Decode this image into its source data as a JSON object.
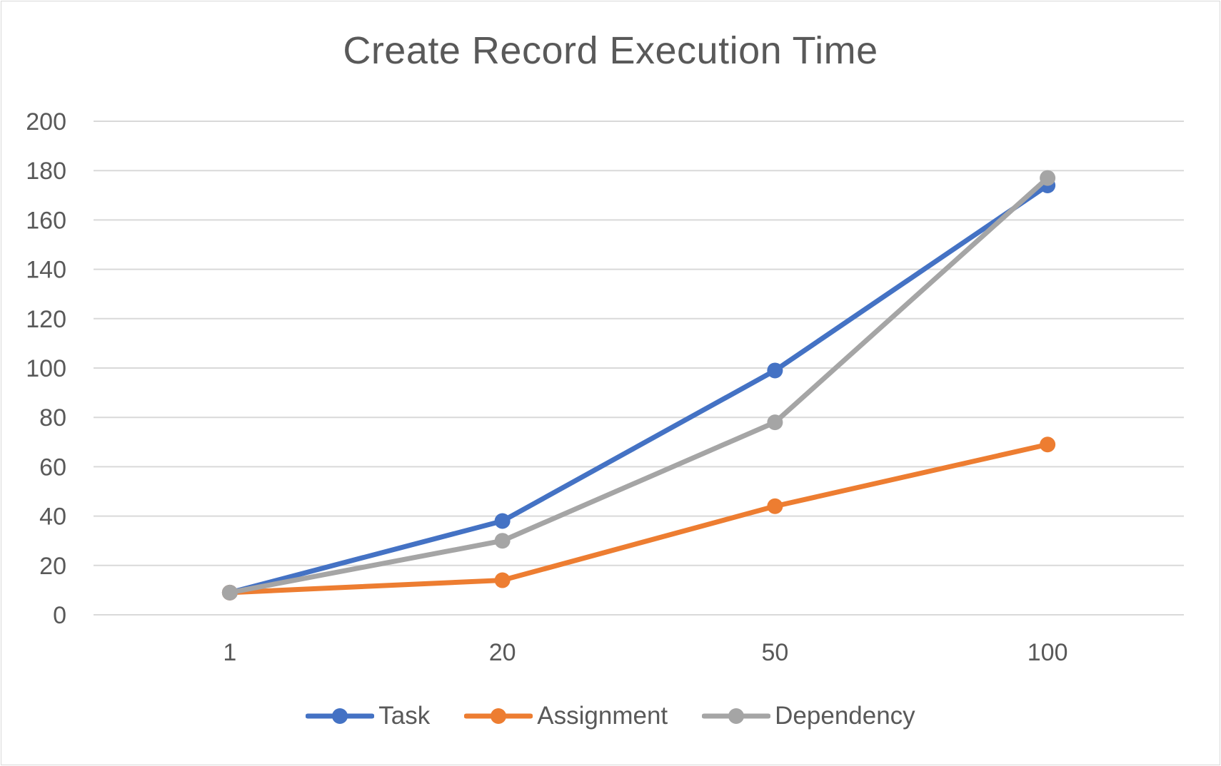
{
  "chart_data": {
    "type": "line",
    "title": "Create Record Execution Time",
    "xlabel": "",
    "ylabel": "",
    "categories": [
      "1",
      "20",
      "50",
      "100"
    ],
    "ylim": [
      0,
      200
    ],
    "yticks": [
      "0",
      "20",
      "40",
      "60",
      "80",
      "100",
      "120",
      "140",
      "160",
      "180",
      "200"
    ],
    "grid": true,
    "legend_position": "bottom",
    "series": [
      {
        "name": "Task",
        "color": "#4472c4",
        "values": [
          9,
          38,
          99,
          174
        ]
      },
      {
        "name": "Assignment",
        "color": "#ed7d31",
        "values": [
          9,
          14,
          44,
          69
        ]
      },
      {
        "name": "Dependency",
        "color": "#a5a5a5",
        "values": [
          9,
          30,
          78,
          177
        ]
      }
    ]
  }
}
